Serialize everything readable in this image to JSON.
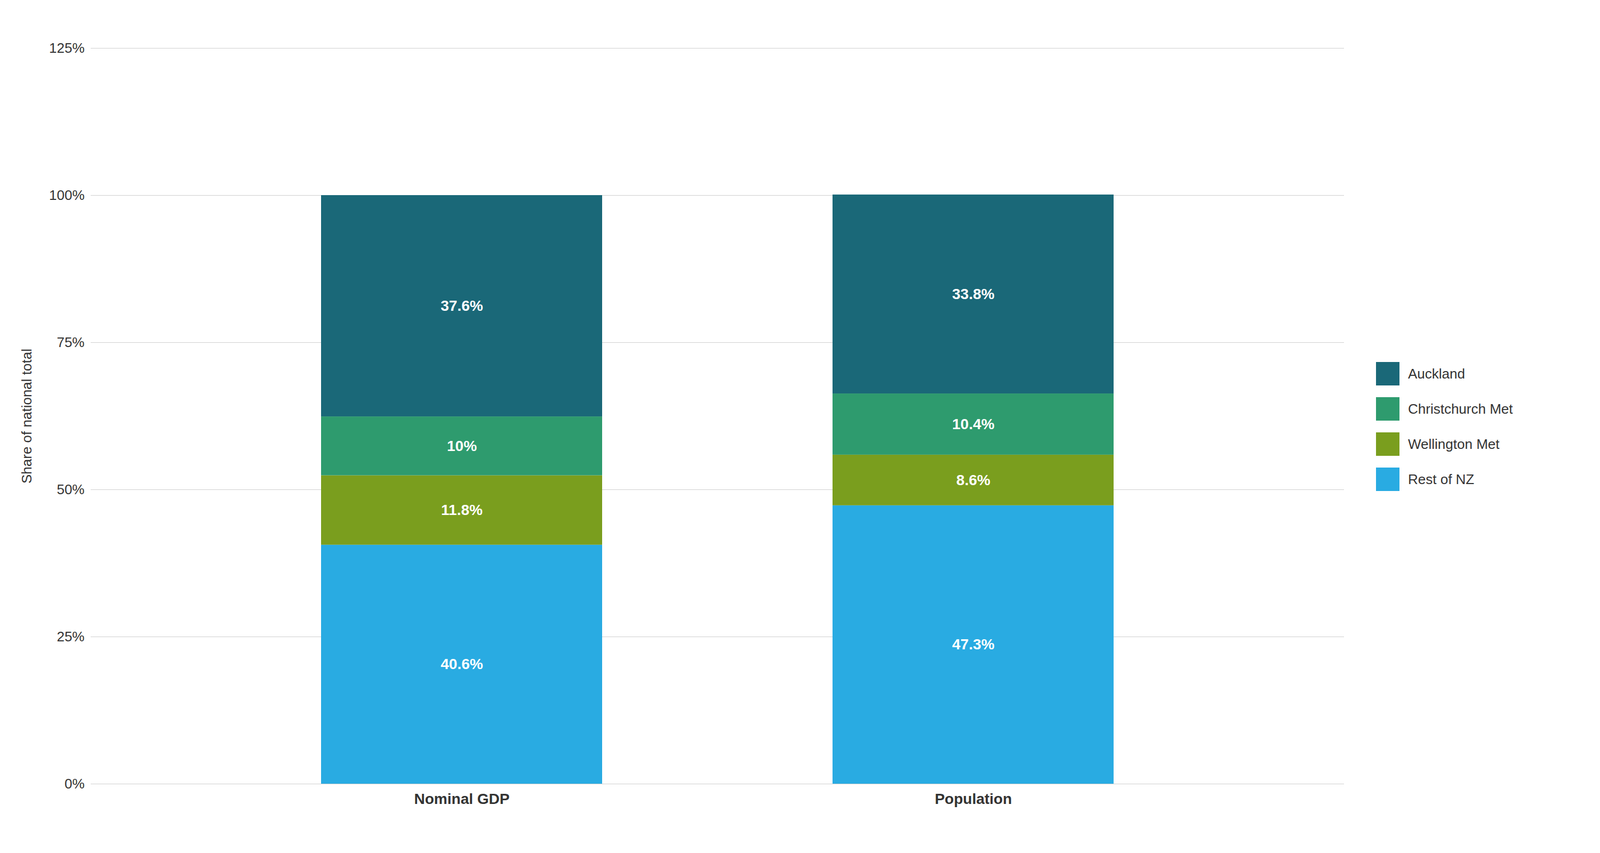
{
  "chart_data": {
    "type": "bar",
    "stacked": true,
    "categories": [
      "Nominal GDP",
      "Population"
    ],
    "series": [
      {
        "name": "Rest of NZ",
        "color": "#29ABE2",
        "values": [
          40.6,
          47.3
        ],
        "value_labels": [
          "40.6%",
          "47.3%"
        ]
      },
      {
        "name": "Wellington Met",
        "color": "#7A9E1E",
        "values": [
          11.8,
          8.6
        ],
        "value_labels": [
          "11.8%",
          "8.6%"
        ]
      },
      {
        "name": "Christchurch Met",
        "color": "#2E9B6E",
        "values": [
          10.0,
          10.4
        ],
        "value_labels": [
          "10%",
          "10.4%"
        ]
      },
      {
        "name": "Auckland",
        "color": "#1A6878",
        "values": [
          37.6,
          33.8
        ],
        "value_labels": [
          "37.6%",
          "33.8%"
        ]
      }
    ],
    "ylabel": "Share of national total",
    "ylim": [
      0,
      125
    ],
    "yticks": [
      {
        "value": 0,
        "label": "0%"
      },
      {
        "value": 25,
        "label": "25%"
      },
      {
        "value": 50,
        "label": "50%"
      },
      {
        "value": 75,
        "label": "75%"
      },
      {
        "value": 100,
        "label": "100%"
      },
      {
        "value": 125,
        "label": "125%"
      }
    ],
    "grid": true,
    "legend": "right",
    "data_labels": true
  }
}
